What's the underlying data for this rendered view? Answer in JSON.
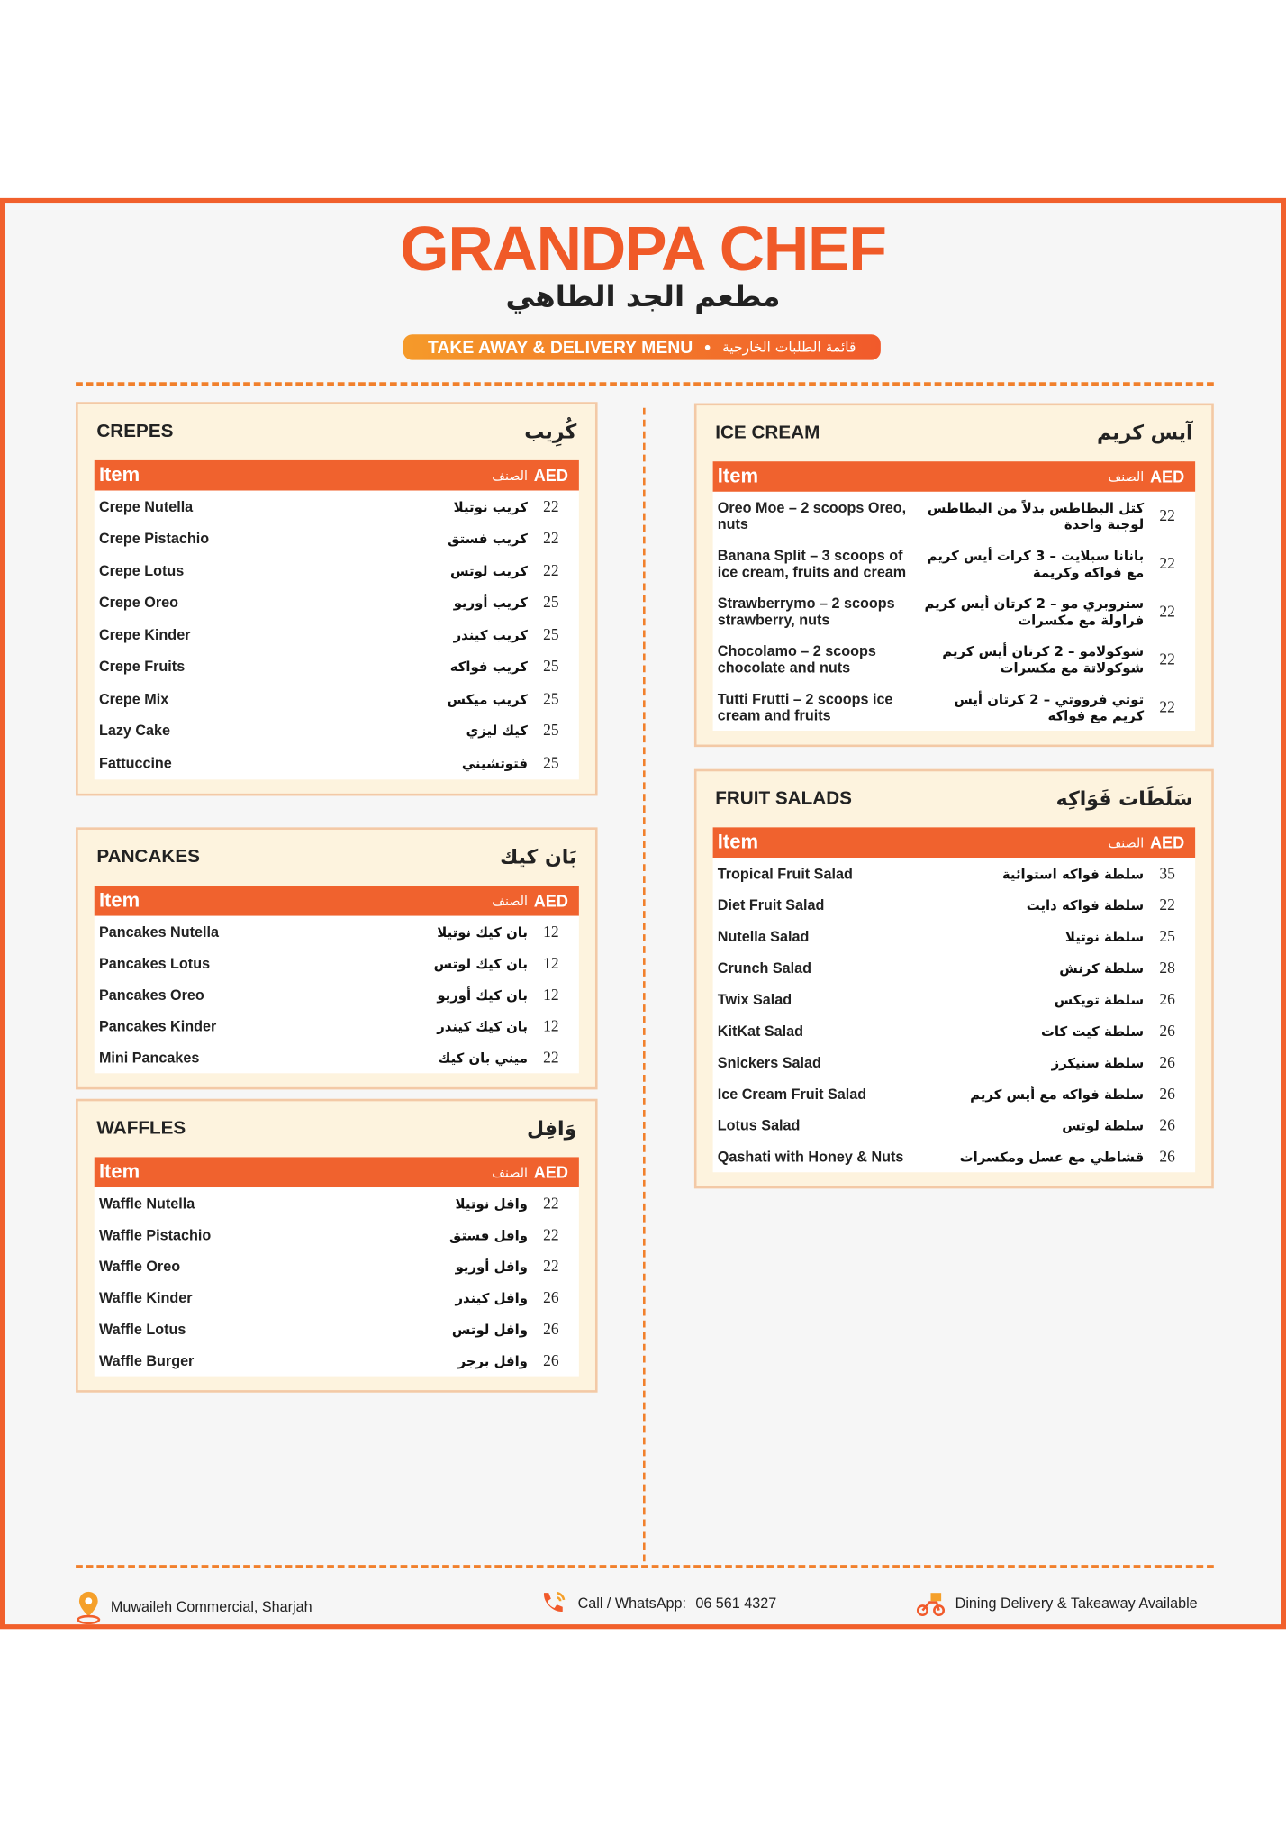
{
  "header": {
    "title": "GRANDPA CHEF",
    "title_ar": "مطعم الجد الطاهي",
    "banner_en": "TAKE AWAY & DELIVERY MENU",
    "banner_ar": "قائمة الطلبات الخارجية"
  },
  "sections": [
    {
      "title": "CREPES",
      "title_ar": "كُرِيب",
      "head": {
        "item": "Item",
        "item_ar": "الصنف",
        "price": "AED"
      },
      "items": [
        {
          "en": "Crepe Nutella",
          "ar": "كريب نوتيلا",
          "price": "22"
        },
        {
          "en": "Crepe Pistachio",
          "ar": "كريب فستق",
          "price": "22"
        },
        {
          "en": "Crepe Lotus",
          "ar": "كريب لوتس",
          "price": "22"
        },
        {
          "en": "Crepe Oreo",
          "ar": "كريب أوريو",
          "price": "25"
        },
        {
          "en": "Crepe Kinder",
          "ar": "كريب كيندر",
          "price": "25"
        },
        {
          "en": "Crepe Fruits",
          "ar": "كريب فواكه",
          "price": "25"
        },
        {
          "en": "Crepe Mix",
          "ar": "كريب ميكس",
          "price": "25"
        },
        {
          "en": "Lazy Cake",
          "ar": "كيك ليزي",
          "price": "25"
        },
        {
          "en": "Fattuccine",
          "ar": "فتوتشيني",
          "price": "25"
        }
      ]
    },
    {
      "title": "PANCAKES",
      "title_ar": "بَان كيك",
      "head": {
        "item": "Item",
        "item_ar": "الصنف",
        "price": "AED"
      },
      "items": [
        {
          "en": "Pancakes Nutella",
          "ar": "بان كيك نوتيلا",
          "price": "12"
        },
        {
          "en": "Pancakes Lotus",
          "ar": "بان كيك لوتس",
          "price": "12"
        },
        {
          "en": "Pancakes Oreo",
          "ar": "بان كيك أوريو",
          "price": "12"
        },
        {
          "en": "Pancakes Kinder",
          "ar": "بان كيك كيندر",
          "price": "12"
        },
        {
          "en": "Mini Pancakes",
          "ar": "ميني بان كيك",
          "price": "22"
        }
      ]
    },
    {
      "title": "WAFFLES",
      "title_ar": "وَافِل",
      "head": {
        "item": "Item",
        "item_ar": "الصنف",
        "price": "AED"
      },
      "items": [
        {
          "en": "Waffle Nutella",
          "ar": "وافل نوتيلا",
          "price": "22"
        },
        {
          "en": "Waffle Pistachio",
          "ar": "وافل فستق",
          "price": "22"
        },
        {
          "en": "Waffle Oreo",
          "ar": "وافل أوريو",
          "price": "22"
        },
        {
          "en": "Waffle Kinder",
          "ar": "وافل كيندر",
          "price": "26"
        },
        {
          "en": "Waffle Lotus",
          "ar": "وافل لوتس",
          "price": "26"
        },
        {
          "en": "Waffle Burger",
          "ar": "وافل برجر",
          "price": "26"
        }
      ]
    },
    {
      "title": "ICE CREAM",
      "title_ar": "آيس كريم",
      "head": {
        "item": "Item",
        "item_ar": "الصنف",
        "price": "AED"
      },
      "items": [
        {
          "en": "Oreo Moe – 2 scoops Oreo, nuts",
          "ar": "كتل البطاطس بدلاً من البطاطس لوجبة واحدة",
          "price": "22"
        },
        {
          "en": "Banana Split – 3 scoops of ice cream, fruits and cream",
          "ar": "بانانا سبلايت – 3 كرات أيس كريم مع فواكه وكريمة",
          "price": "22"
        },
        {
          "en": "Strawberrymo – 2 scoops strawberry, nuts",
          "ar": "ستروبري مو – 2 كرتان أيس كريم فراولة مع مكسرات",
          "price": "22"
        },
        {
          "en": "Chocolamo – 2 scoops chocolate and nuts",
          "ar": "شوكولامو – 2 كرتان أيس كريم شوكولاتة مع مكسرات",
          "price": "22"
        },
        {
          "en": "Tutti Frutti – 2 scoops ice cream and fruits",
          "ar": "توتي فرووتي – 2 كرتان أيس كريم مع فواكه",
          "price": "22"
        }
      ]
    },
    {
      "title": "FRUIT SALADS",
      "title_ar": "سَلَطَات فَوَاكِه",
      "head": {
        "item": "Item",
        "item_ar": "الصنف",
        "price": "AED"
      },
      "items": [
        {
          "en": "Tropical Fruit Salad",
          "ar": "سلطة فواكه استوائية",
          "price": "35"
        },
        {
          "en": "Diet Fruit Salad",
          "ar": "سلطة فواكه دايت",
          "price": "22"
        },
        {
          "en": "Nutella Salad",
          "ar": "سلطة نوتيلا",
          "price": "25"
        },
        {
          "en": "Crunch Salad",
          "ar": "سلطة كرنش",
          "price": "28"
        },
        {
          "en": "Twix Salad",
          "ar": "سلطة تويكس",
          "price": "26"
        },
        {
          "en": "KitKat Salad",
          "ar": "سلطة كيت كات",
          "price": "26"
        },
        {
          "en": "Snickers Salad",
          "ar": "سلطة سنيكرز",
          "price": "26"
        },
        {
          "en": "Ice Cream Fruit Salad",
          "ar": "سلطة فواكه مع أيس كريم",
          "price": "26"
        },
        {
          "en": "Lotus Salad",
          "ar": "سلطة لوتس",
          "price": "26"
        },
        {
          "en": "Qashati with Honey & Nuts",
          "ar": "قشاطي مع عسل ومكسرات",
          "price": "26"
        }
      ]
    }
  ],
  "footer": {
    "address": "Muwaileh Commercial, Sharjah",
    "call_label": "Call / WhatsApp:",
    "phone": "06 561 4327",
    "service": "Dining Delivery & Takeaway Available"
  }
}
